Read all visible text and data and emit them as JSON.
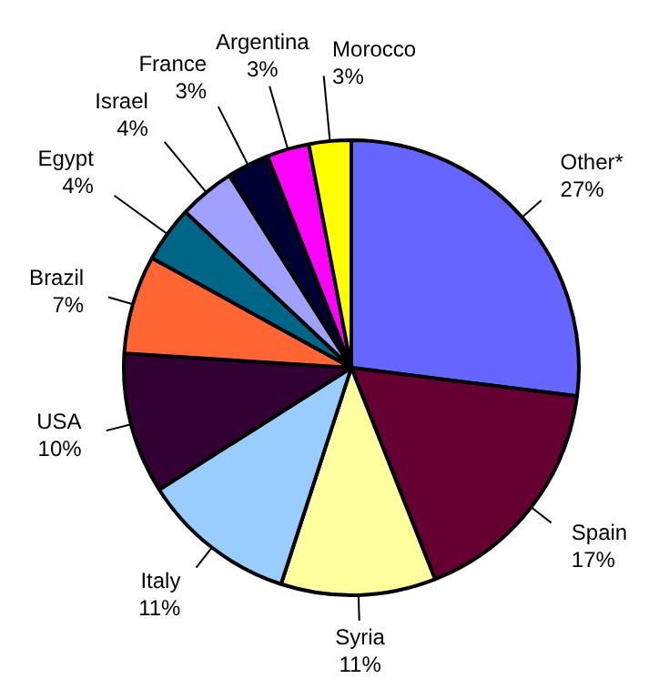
{
  "chart_data": {
    "type": "pie",
    "categories": [
      "Other*",
      "Spain",
      "Syria",
      "Italy",
      "USA",
      "Brazil",
      "Egypt",
      "Israel",
      "France",
      "Argentina",
      "Morocco"
    ],
    "values": [
      27,
      17,
      11,
      11,
      10,
      7,
      4,
      4,
      3,
      3,
      3
    ],
    "value_labels": [
      "27%",
      "17%",
      "11%",
      "11%",
      "10%",
      "7%",
      "4%",
      "4%",
      "3%",
      "3%",
      "3%"
    ],
    "colors": [
      "#6666ff",
      "#660033",
      "#ffffa0",
      "#99ccff",
      "#330033",
      "#ff6633",
      "#006688",
      "#a0a0ff",
      "#000033",
      "#ff00ff",
      "#ffff00"
    ],
    "legend": false
  }
}
